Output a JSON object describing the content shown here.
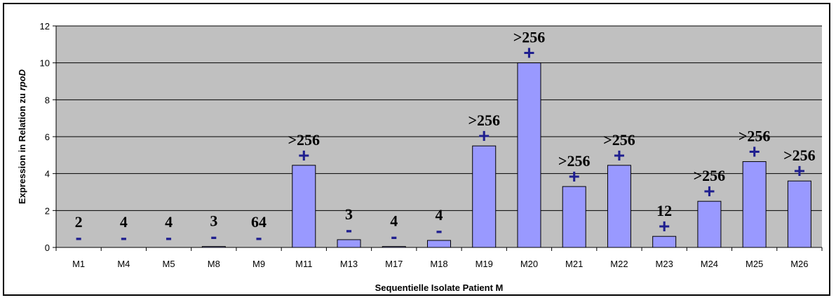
{
  "chart_data": {
    "type": "bar",
    "title": "",
    "xlabel": "Sequentielle Isolate Patient M",
    "ylabel_main": "Expression in Relation zu ",
    "ylabel_italic": "rpoD",
    "ylim": [
      0,
      12
    ],
    "yticks": [
      "0",
      "2",
      "4",
      "6",
      "8",
      "10",
      "12"
    ],
    "grid": true,
    "colors": {
      "plot_bg": "#c0c0c0",
      "bar": "#9999ff",
      "mark": "#1f1f8f"
    },
    "categories": [
      "M1",
      "M4",
      "M5",
      "M8",
      "M9",
      "M11",
      "M13",
      "M17",
      "M18",
      "M19",
      "M20",
      "M21",
      "M22",
      "M23",
      "M24",
      "M25",
      "M26"
    ],
    "values": [
      0,
      0,
      0,
      0.05,
      0,
      4.45,
      0.42,
      0.05,
      0.38,
      5.5,
      10.0,
      3.3,
      4.45,
      0.6,
      2.5,
      4.65,
      3.6
    ],
    "labels": [
      "2",
      "4",
      "4",
      "3",
      "64",
      ">256",
      "3",
      "4",
      "4",
      ">256",
      ">256",
      ">256",
      ">256",
      "12",
      ">256",
      ">256",
      ">256"
    ],
    "marks": [
      "-",
      "-",
      "-",
      "-",
      "-",
      "+",
      "-",
      "-",
      "-",
      "+",
      "+",
      "+",
      "+",
      "+",
      "+",
      "+",
      "+"
    ]
  }
}
